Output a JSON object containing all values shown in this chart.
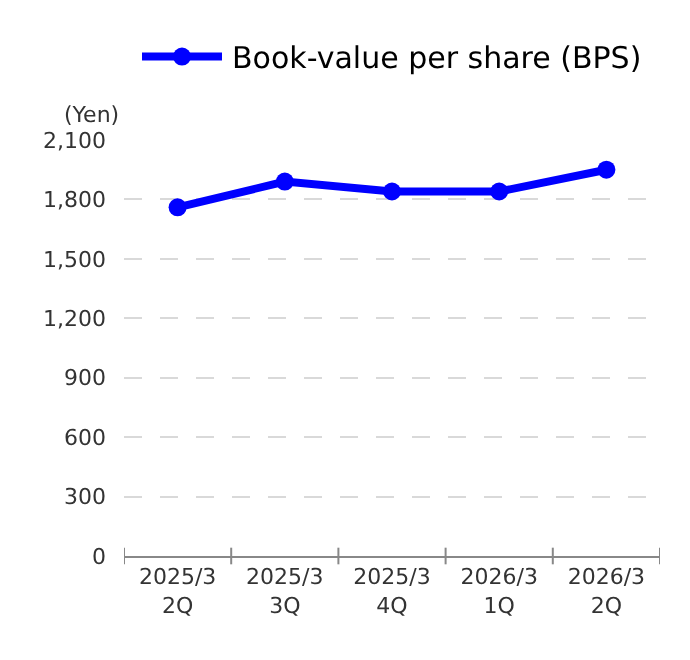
{
  "chart_data": {
    "type": "line",
    "ylabel": "(Yen)",
    "categories": [
      "2025/3\n2Q",
      "2025/3\n3Q",
      "2025/3\n4Q",
      "2026/3\n1Q",
      "2026/3\n2Q"
    ],
    "series": [
      {
        "name": "Book-value per share (BPS)",
        "color": "#0000ff",
        "values": [
          1760,
          1890,
          1840,
          1840,
          1950
        ]
      }
    ],
    "ylim": [
      0,
      2100
    ],
    "yticks": [
      {
        "value": 0,
        "label": "0"
      },
      {
        "value": 300,
        "label": "300"
      },
      {
        "value": 600,
        "label": "600"
      },
      {
        "value": 900,
        "label": "900"
      },
      {
        "value": 1200,
        "label": "1,200"
      },
      {
        "value": 1500,
        "label": "1,500"
      },
      {
        "value": 1800,
        "label": "1,800"
      },
      {
        "value": 2100,
        "label": "2,100"
      }
    ],
    "grid": "y",
    "legend": "top",
    "marker": "circle",
    "line_style": "solid"
  }
}
